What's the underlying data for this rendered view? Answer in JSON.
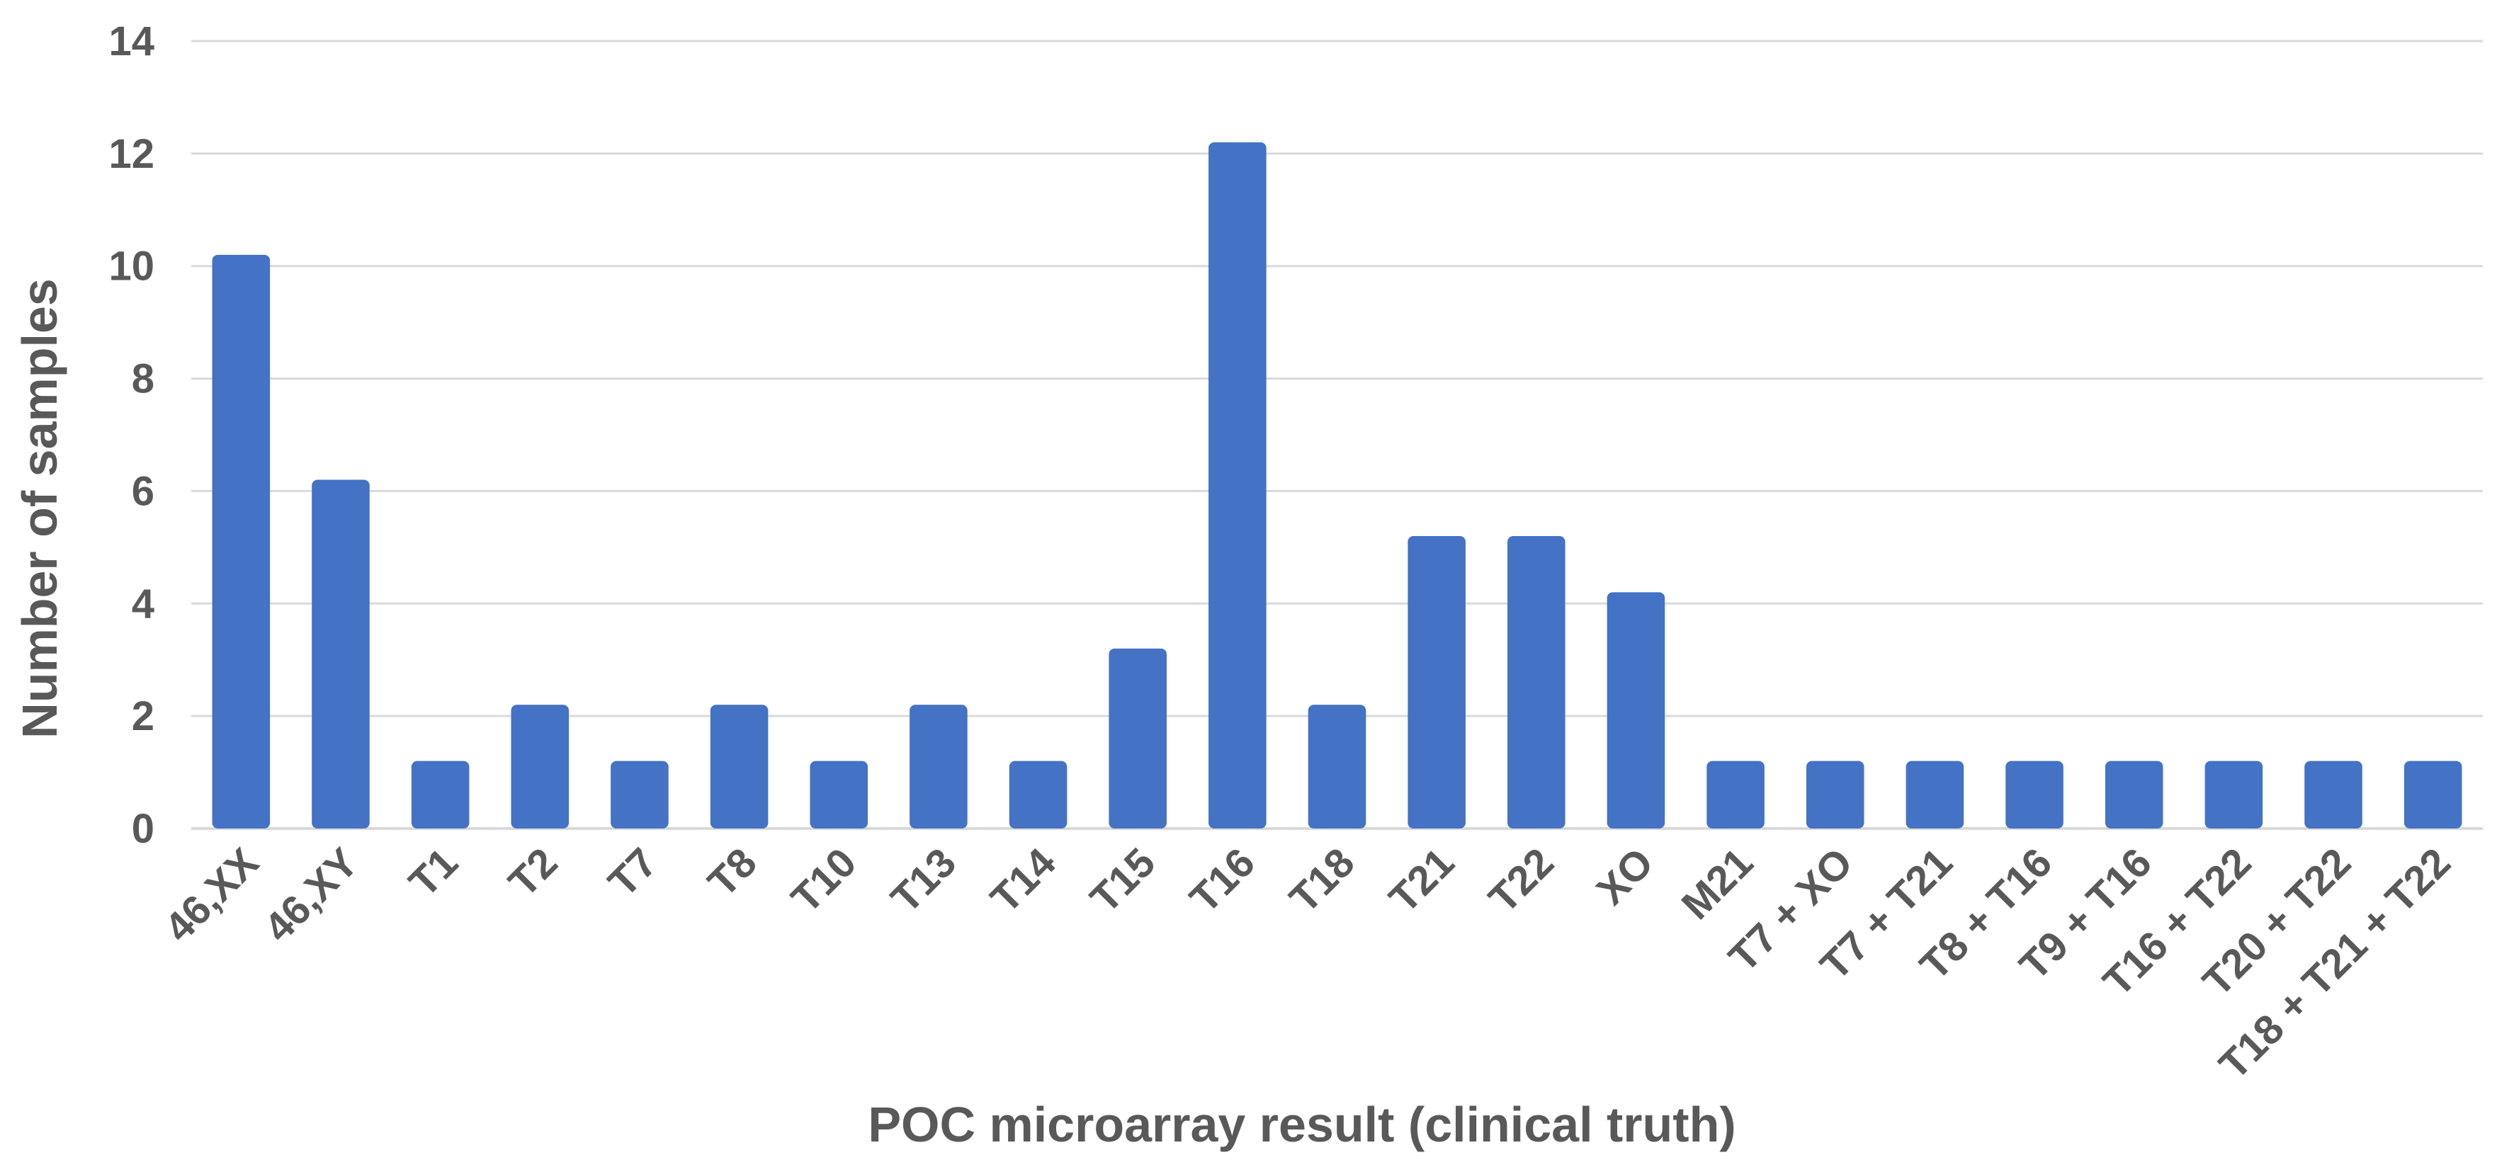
{
  "chart_data": {
    "type": "bar",
    "title": "",
    "xlabel": "POC microarray result (clinical truth)",
    "ylabel": "Number of samples",
    "ylim": [
      0,
      14
    ],
    "yticks": [
      0,
      2,
      4,
      6,
      8,
      10,
      12,
      14
    ],
    "grid": true,
    "legend": "none",
    "bar_color": "#4472c4",
    "categories": [
      "46,XX",
      "46,XY",
      "T1",
      "T2",
      "T7",
      "T8",
      "T10",
      "T13",
      "T14",
      "T15",
      "T16",
      "T18",
      "T21",
      "T22",
      "XO",
      "M21",
      "T7 + XO",
      "T7 + T21",
      "T8 + T16",
      "T9 + T16",
      "T16 + T22",
      "T20 + T22",
      "T18 + T21 + T22"
    ],
    "values": [
      10,
      6,
      1,
      2,
      1,
      2,
      1,
      2,
      1,
      3,
      12,
      2,
      5,
      5,
      4,
      1,
      1,
      1,
      1,
      1,
      1,
      1,
      1
    ]
  }
}
